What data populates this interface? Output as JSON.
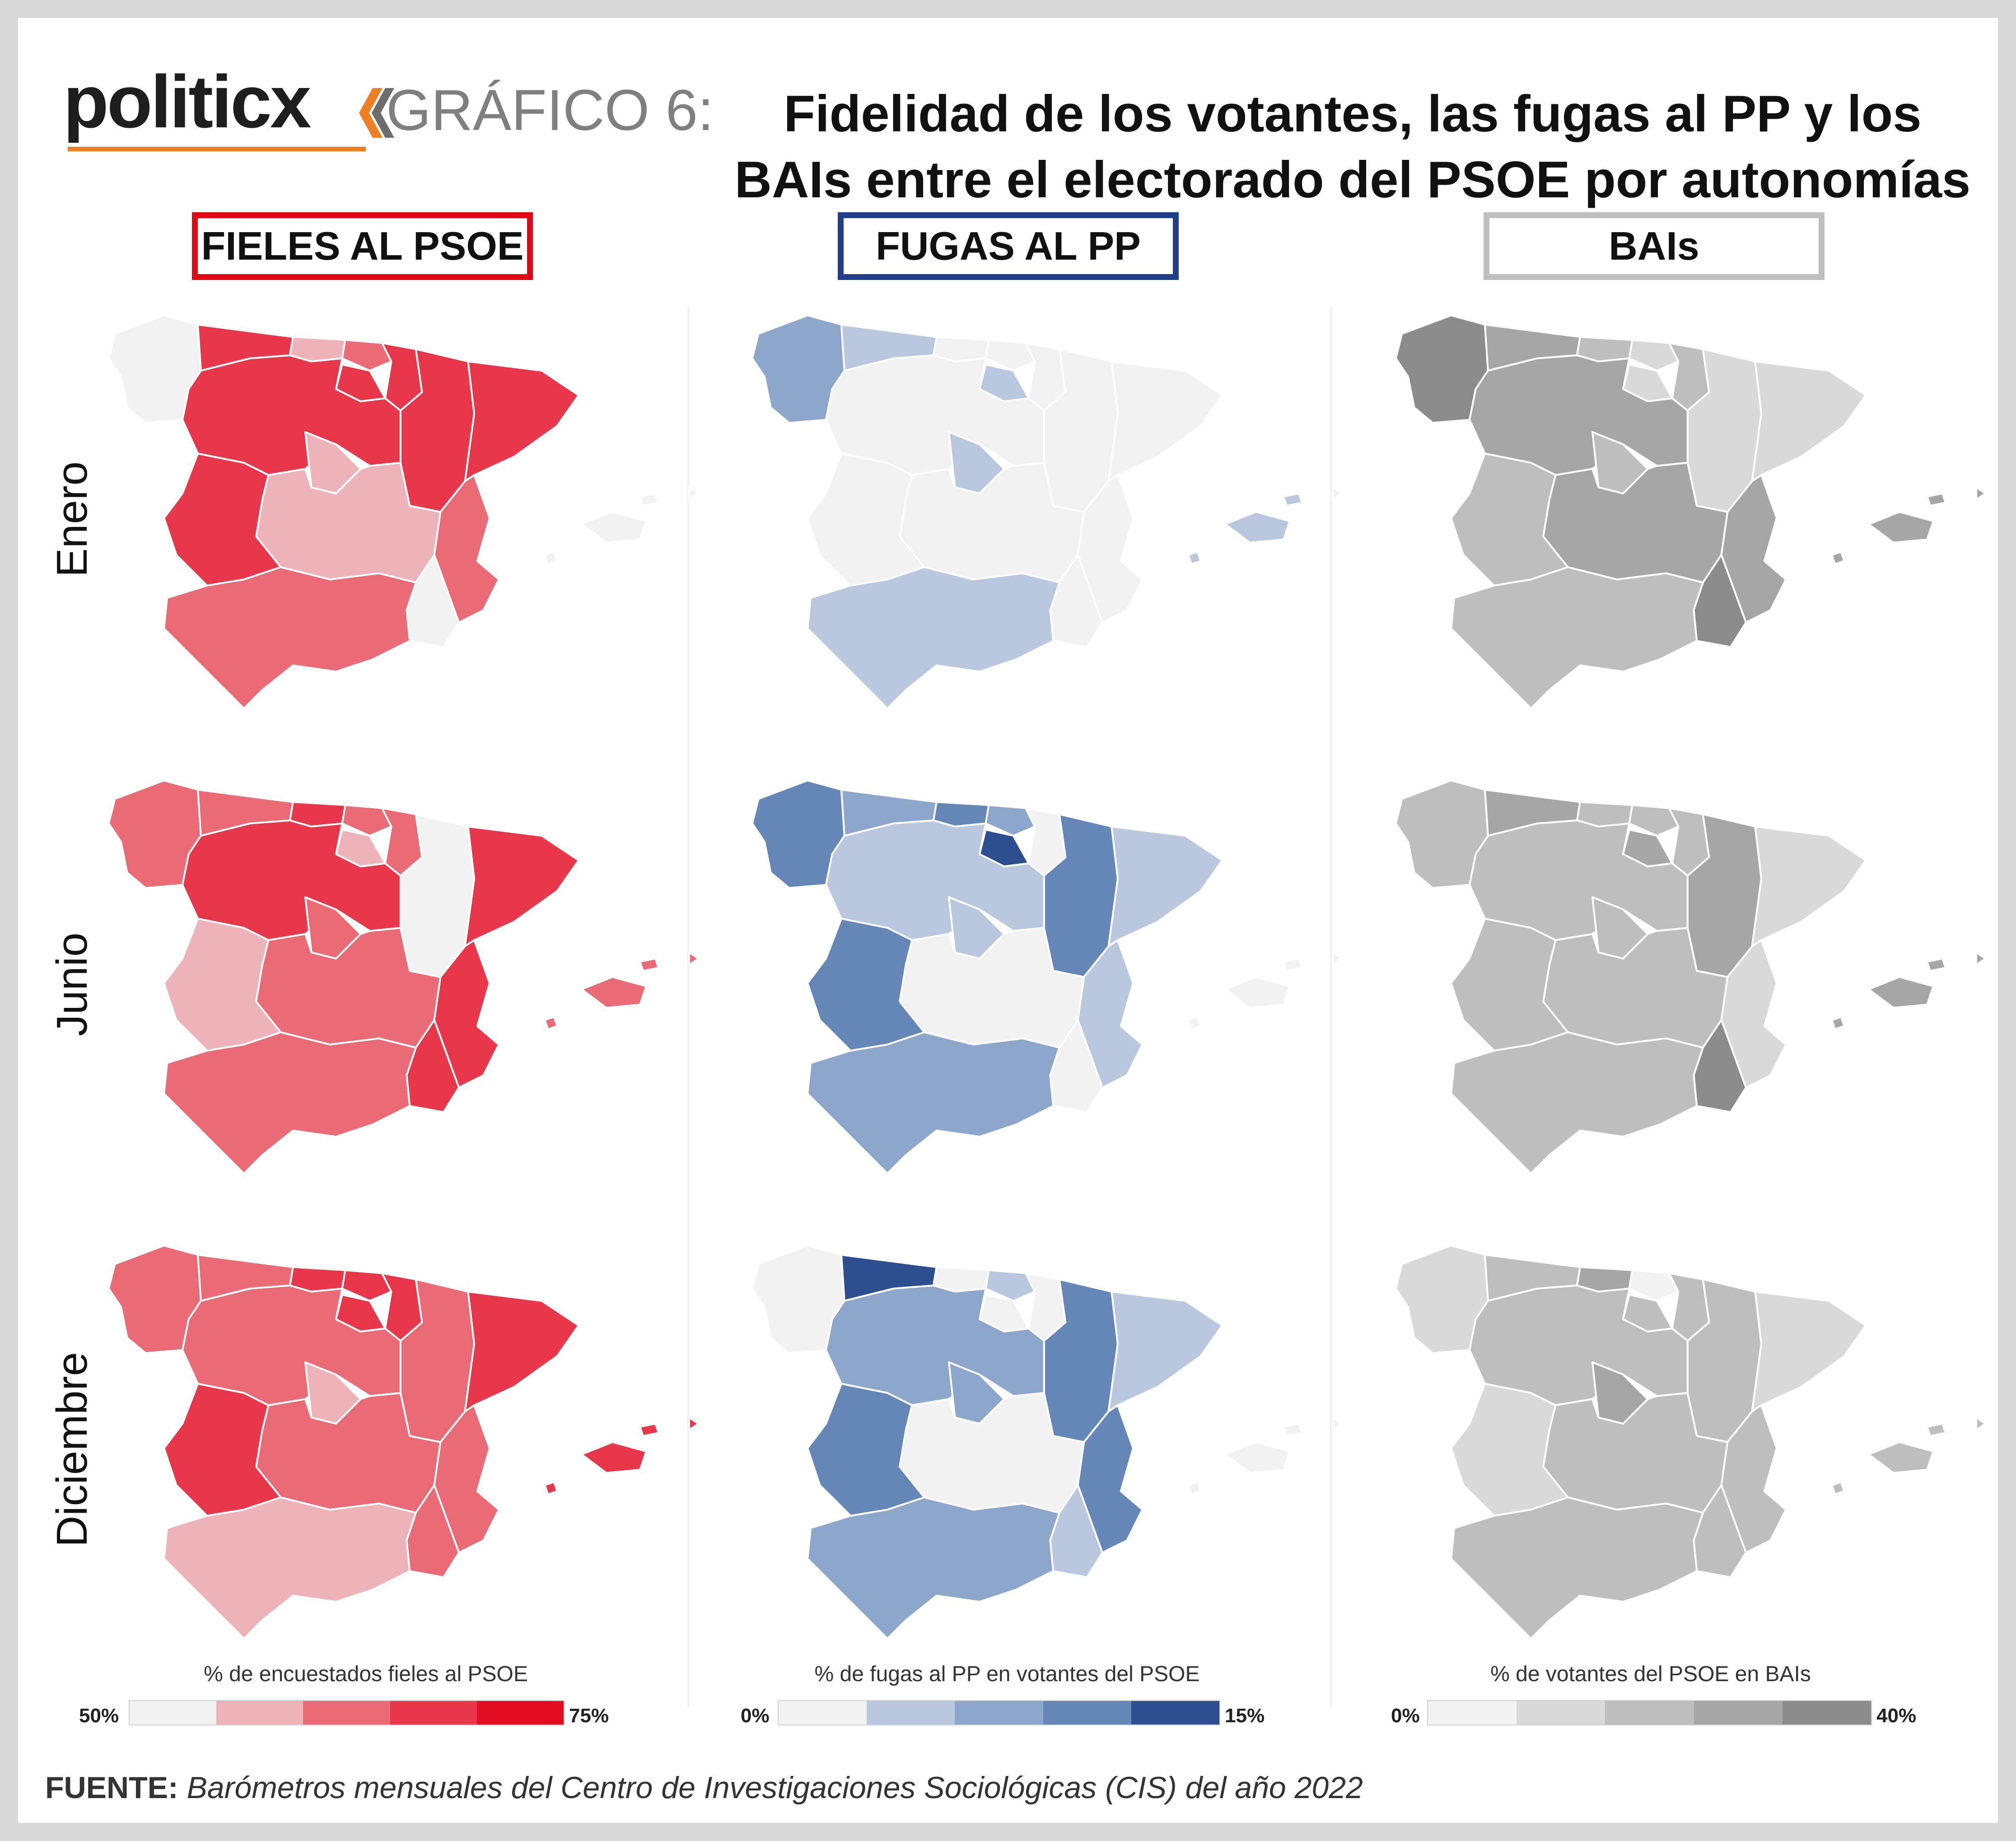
{
  "brand": {
    "logo_text": "politicx"
  },
  "header": {
    "prefix": "GRÁFICO 6:",
    "title": "Fidelidad de los votantes, las fugas al PP y los BAIs entre el electorado del PSOE por autonomías"
  },
  "columns": [
    {
      "label": "FIELES AL PSOE",
      "border_color": "#e30613"
    },
    {
      "label": "FUGAS AL PP",
      "border_color": "#1f3f8a"
    },
    {
      "label": "BAIs",
      "border_color": "#bfbfbf"
    }
  ],
  "rows": [
    "Enero",
    "Junio",
    "Diciembre"
  ],
  "legends": [
    {
      "title": "% de encuestados fieles al PSOE",
      "min": "50%",
      "max": "75%",
      "colors": [
        "#f2f2f2",
        "#eeb3b9",
        "#ea6b76",
        "#e8374a",
        "#e20d20"
      ]
    },
    {
      "title": "% de fugas al PP en votantes del PSOE",
      "min": "0%",
      "max": "15%",
      "colors": [
        "#f2f2f2",
        "#b9c8df",
        "#8da6cb",
        "#6487b8",
        "#2d4f8f"
      ]
    },
    {
      "title": "% de votantes del PSOE en BAIs",
      "min": "0%",
      "max": "40%",
      "colors": [
        "#f2f2f2",
        "#d9d9d9",
        "#bebebe",
        "#a6a6a6",
        "#8c8c8c"
      ]
    }
  ],
  "source": {
    "label": "FUENTE:",
    "text": "Barómetros mensuales del Centro de Investigaciones Sociológicas (CIS) del año 2022"
  },
  "map_levels": {
    "note": "Color class index (0-4) per region, per column, per month, following the legend bins",
    "fieles": {
      "Enero": {
        "galicia": 0,
        "asturias": 3,
        "cantabria": 1,
        "pais_vasco": 2,
        "navarra": 3,
        "la_rioja": 3,
        "aragon": 3,
        "cataluna": 3,
        "castilla_leon": 3,
        "madrid": 1,
        "castilla_mancha": 1,
        "extremadura": 3,
        "valencia": 2,
        "murcia": 0,
        "andalucia": 2,
        "baleares": 0,
        "canarias": 0
      },
      "Junio": {
        "galicia": 2,
        "asturias": 2,
        "cantabria": 3,
        "pais_vasco": 2,
        "navarra": 2,
        "la_rioja": 1,
        "aragon": 0,
        "cataluna": 3,
        "castilla_leon": 3,
        "madrid": 2,
        "castilla_mancha": 2,
        "extremadura": 1,
        "valencia": 3,
        "murcia": 3,
        "andalucia": 2,
        "baleares": 2,
        "canarias": 2
      },
      "Diciembre": {
        "galicia": 2,
        "asturias": 2,
        "cantabria": 3,
        "pais_vasco": 3,
        "navarra": 3,
        "la_rioja": 3,
        "aragon": 2,
        "cataluna": 3,
        "castilla_leon": 2,
        "madrid": 1,
        "castilla_mancha": 2,
        "extremadura": 3,
        "valencia": 2,
        "murcia": 2,
        "andalucia": 1,
        "baleares": 3,
        "canarias": 3
      }
    },
    "fugas": {
      "Enero": {
        "galicia": 2,
        "asturias": 1,
        "cantabria": 0,
        "pais_vasco": 0,
        "navarra": 0,
        "la_rioja": 1,
        "aragon": 0,
        "cataluna": 0,
        "castilla_leon": 0,
        "madrid": 1,
        "castilla_mancha": 0,
        "extremadura": 0,
        "valencia": 0,
        "murcia": 0,
        "andalucia": 1,
        "baleares": 1,
        "canarias": 0
      },
      "Junio": {
        "galicia": 3,
        "asturias": 2,
        "cantabria": 3,
        "pais_vasco": 2,
        "navarra": 0,
        "la_rioja": 4,
        "aragon": 3,
        "cataluna": 1,
        "castilla_leon": 1,
        "madrid": 1,
        "castilla_mancha": 0,
        "extremadura": 3,
        "valencia": 1,
        "murcia": 0,
        "andalucia": 2,
        "baleares": 0,
        "canarias": 0
      },
      "Diciembre": {
        "galicia": 0,
        "asturias": 4,
        "cantabria": 0,
        "pais_vasco": 1,
        "navarra": 0,
        "la_rioja": 0,
        "aragon": 3,
        "cataluna": 1,
        "castilla_leon": 2,
        "madrid": 2,
        "castilla_mancha": 0,
        "extremadura": 3,
        "valencia": 3,
        "murcia": 1,
        "andalucia": 2,
        "baleares": 0,
        "canarias": 0
      }
    },
    "bais": {
      "Enero": {
        "galicia": 4,
        "asturias": 3,
        "cantabria": 2,
        "pais_vasco": 1,
        "navarra": 2,
        "la_rioja": 1,
        "aragon": 1,
        "cataluna": 1,
        "castilla_leon": 3,
        "madrid": 2,
        "castilla_mancha": 3,
        "extremadura": 2,
        "valencia": 3,
        "murcia": 4,
        "andalucia": 2,
        "baleares": 3,
        "canarias": 3
      },
      "Junio": {
        "galicia": 2,
        "asturias": 3,
        "cantabria": 2,
        "pais_vasco": 2,
        "navarra": 2,
        "la_rioja": 3,
        "aragon": 3,
        "cataluna": 1,
        "castilla_leon": 2,
        "madrid": 2,
        "castilla_mancha": 2,
        "extremadura": 2,
        "valencia": 1,
        "murcia": 4,
        "andalucia": 2,
        "baleares": 3,
        "canarias": 3
      },
      "Diciembre": {
        "galicia": 1,
        "asturias": 2,
        "cantabria": 3,
        "pais_vasco": 0,
        "navarra": 2,
        "la_rioja": 2,
        "aragon": 2,
        "cataluna": 1,
        "castilla_leon": 2,
        "madrid": 3,
        "castilla_mancha": 2,
        "extremadura": 1,
        "valencia": 2,
        "murcia": 2,
        "andalucia": 2,
        "baleares": 2,
        "canarias": 2
      }
    }
  }
}
